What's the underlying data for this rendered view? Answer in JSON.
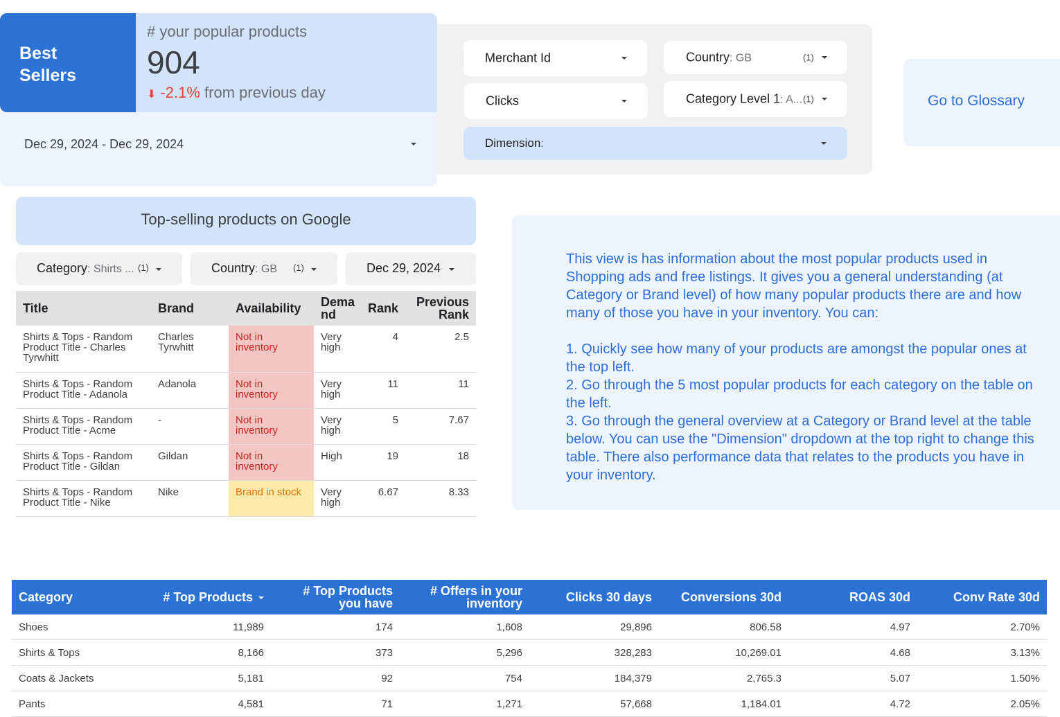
{
  "header": {
    "title": "Best Sellers",
    "kpi_label": "# your popular products",
    "kpi_value": "904",
    "kpi_change": "-2.1%",
    "kpi_change_suffix": "from previous day",
    "date_range": "Dec 29, 2024 - Dec 29, 2024"
  },
  "filters": {
    "merchant_id": "Merchant Id",
    "metric": "Clicks",
    "country_label": "Country",
    "country_value": "GB",
    "country_count": "(1)",
    "category_label": "Category Level 1",
    "category_value": "A...",
    "category_count": "(1)",
    "dimension_label": "Dimension",
    "dimension_value": ""
  },
  "glossary": {
    "label": "Go to Glossary"
  },
  "top_selling": {
    "title": "Top-selling products on Google",
    "filter_category_label": "Category",
    "filter_category_value": "Shirts ...",
    "filter_category_count": "(1)",
    "filter_country_label": "Country",
    "filter_country_value": "GB",
    "filter_country_count": "(1)",
    "filter_date": "Dec 29, 2024",
    "columns": [
      "Title",
      "Brand",
      "Availability",
      "Demand",
      "Rank",
      "Previous Rank"
    ],
    "rows": [
      {
        "title": "Shirts & Tops - Random Product Title - Charles Tyrwhitt",
        "brand": "Charles Tyrwhitt",
        "availability": "Not in inventory",
        "demand": "Very high",
        "rank": "4",
        "previous_rank": "2.5"
      },
      {
        "title": "Shirts & Tops - Random Product Title - Adanola",
        "brand": "Adanola",
        "availability": "Not in inventory",
        "demand": "Very high",
        "rank": "11",
        "previous_rank": "11"
      },
      {
        "title": "Shirts & Tops - Random Product Title - Acme",
        "brand": "-",
        "availability": "Not in inventory",
        "demand": "Very high",
        "rank": "5",
        "previous_rank": "7.67"
      },
      {
        "title": "Shirts & Tops - Random Product Title - Gildan",
        "brand": "Gildan",
        "availability": "Not in inventory",
        "demand": "High",
        "rank": "19",
        "previous_rank": "18"
      },
      {
        "title": "Shirts & Tops - Random Product Title - Nike",
        "brand": "Nike",
        "availability": "Brand in stock",
        "demand": "Very high",
        "rank": "6.67",
        "previous_rank": "8.33"
      }
    ]
  },
  "info": {
    "intro": "This view is has information about the most popular products used in Shopping ads and free listings. It gives  you a general understanding (at Category or Brand level) of how many popular products there are and how many of those you have in your inventory. You can:",
    "point1": "1. Quickly see how many of your products are amongst the popular ones at the top left.",
    "point2": "2. Go through the 5 most popular products for each category on the table on the left.",
    "point3": "3. Go through the general overview at a Category or Brand level at the table below. You can use the \"Dimension\" dropdown at the top right to change this table. There also performance data that relates to the products you have in your inventory."
  },
  "category_table": {
    "columns": [
      "Category",
      "# Top Products",
      "# Top Products you have",
      "# Offers in your inventory",
      "Clicks 30 days",
      "Conversions 30d",
      "ROAS 30d",
      "Conv Rate 30d"
    ],
    "rows": [
      [
        "Shoes",
        "11,989",
        "174",
        "1,608",
        "29,896",
        "806.58",
        "4.97",
        "2.70%"
      ],
      [
        "Shirts & Tops",
        "8,166",
        "373",
        "5,296",
        "328,283",
        "10,269.01",
        "4.68",
        "3.13%"
      ],
      [
        "Coats & Jackets",
        "5,181",
        "92",
        "754",
        "184,379",
        "2,765.3",
        "5.07",
        "1.50%"
      ],
      [
        "Pants",
        "4,581",
        "71",
        "1,271",
        "57,668",
        "1,184.01",
        "4.72",
        "2.05%"
      ]
    ]
  }
}
